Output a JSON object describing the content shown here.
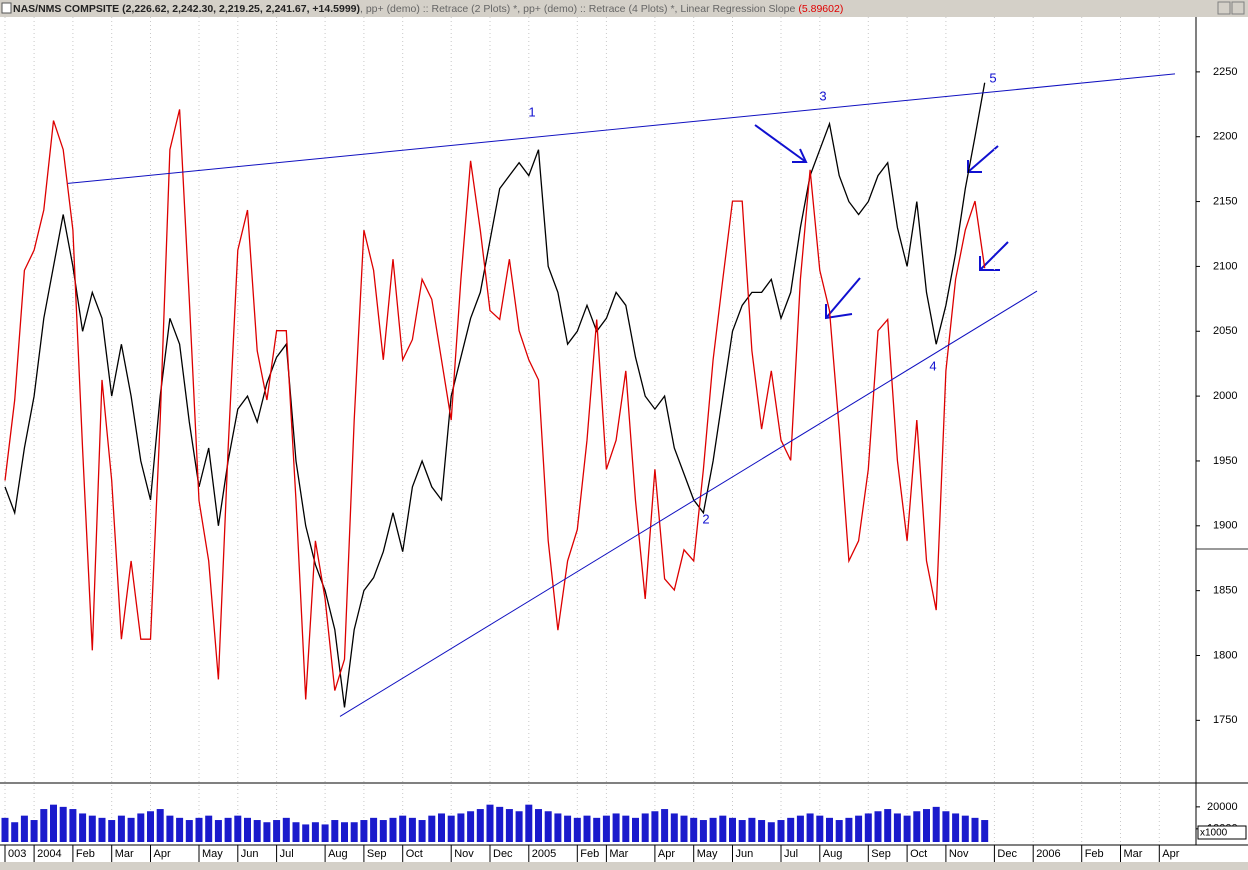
{
  "chart_data": [
    {
      "type": "line",
      "title": "NAS/NMS COMPSITE (2,226.62, 2,242.30, 2,219.25, 2,241.67, +14.5999)",
      "subtitle": ", pp+ (demo) :: Retrace (2 Plots) *, pp+ (demo) :: Retrace (4 Plots) *, Linear Regression Slope",
      "readout": "(5.89602)",
      "grid": true,
      "categories": [
        "003",
        null,
        null,
        "2004",
        null,
        null,
        null,
        "Feb",
        null,
        null,
        null,
        "Mar",
        null,
        null,
        null,
        "Apr",
        null,
        null,
        null,
        null,
        "May",
        null,
        null,
        null,
        "Jun",
        null,
        null,
        null,
        "Jul",
        null,
        null,
        null,
        null,
        "Aug",
        null,
        null,
        null,
        "Sep",
        null,
        null,
        null,
        "Oct",
        null,
        null,
        null,
        null,
        "Nov",
        null,
        null,
        null,
        "Dec",
        null,
        null,
        null,
        "2005",
        null,
        null,
        null,
        null,
        "Feb",
        null,
        null,
        "Mar",
        null,
        null,
        null,
        null,
        "Apr",
        null,
        null,
        null,
        "May",
        null,
        null,
        null,
        "Jun",
        null,
        null,
        null,
        null,
        "Jul",
        null,
        null,
        null,
        "Aug",
        null,
        null,
        null,
        null,
        "Sep",
        null,
        null,
        null,
        "Oct",
        null,
        null,
        null,
        "Nov",
        null,
        null,
        null,
        null,
        "Dec",
        null,
        null,
        null,
        "2006",
        null,
        null,
        null,
        null,
        "Feb",
        null,
        null,
        null,
        "Mar",
        null,
        null,
        null,
        "Apr",
        null,
        null,
        null
      ],
      "series": [
        {
          "color": "#000000",
          "values": [
            1930,
            1910,
            1960,
            2000,
            2060,
            2100,
            2140,
            2100,
            2050,
            2080,
            2060,
            2000,
            2040,
            2000,
            1950,
            1920,
            2000,
            2060,
            2040,
            1980,
            1930,
            1960,
            1900,
            1950,
            1990,
            2000,
            1980,
            2010,
            2030,
            2040,
            1950,
            1900,
            1870,
            1850,
            1820,
            1760,
            1820,
            1850,
            1860,
            1880,
            1910,
            1880,
            1930,
            1950,
            1930,
            1920,
            2000,
            2030,
            2060,
            2080,
            2120,
            2160,
            2170,
            2180,
            2170,
            2190,
            2100,
            2080,
            2040,
            2050,
            2070,
            2050,
            2060,
            2080,
            2070,
            2030,
            2000,
            1990,
            2000,
            1960,
            1940,
            1920,
            1910,
            1950,
            2000,
            2050,
            2070,
            2080,
            2080,
            2090,
            2060,
            2080,
            2130,
            2170,
            2190,
            2210,
            2170,
            2150,
            2140,
            2150,
            2170,
            2180,
            2130,
            2100,
            2150,
            2080,
            2040,
            2070,
            2110,
            2160,
            2200,
            2241.67,
            null,
            null,
            null,
            null,
            null,
            null,
            null,
            null,
            null,
            null,
            null,
            null,
            null,
            null,
            null,
            null,
            null,
            null,
            null,
            null,
            null
          ]
        },
        {
          "color": "#dd0000",
          "axis": "y2",
          "values": [
            -3.6,
            0,
            5.8,
            6.7,
            8.5,
            12.5,
            11.2,
            7.6,
            -2.2,
            -11.2,
            0.9,
            -3.6,
            -10.7,
            -7.2,
            -10.7,
            -10.7,
            -0.9,
            11.2,
            13.0,
            4.5,
            -4.5,
            -7.2,
            -12.5,
            -2.2,
            6.7,
            8.5,
            2.2,
            0,
            3.1,
            3.1,
            -4.5,
            -13.4,
            -6.3,
            -8.9,
            -13.0,
            -11.6,
            -0.9,
            7.6,
            5.8,
            1.8,
            6.3,
            1.8,
            2.7,
            5.4,
            4.5,
            1.8,
            -0.9,
            5.4,
            10.7,
            7.6,
            4.0,
            3.6,
            6.3,
            3.1,
            1.8,
            0.9,
            -6.3,
            -10.3,
            -7.2,
            -5.8,
            -1.8,
            3.6,
            -3.1,
            -1.8,
            1.3,
            -4.5,
            -8.9,
            -3.1,
            -8.0,
            -8.5,
            -6.7,
            -7.2,
            -3.1,
            1.8,
            5.4,
            8.9,
            8.9,
            2.2,
            -1.3,
            1.3,
            -1.8,
            -2.7,
            5.4,
            10.3,
            5.8,
            4.0,
            -1.3,
            -7.2,
            -6.3,
            -3.1,
            3.1,
            3.6,
            -2.7,
            -6.3,
            -0.9,
            -7.2,
            -9.4,
            1.3,
            5.4,
            7.6,
            8.9,
            5.89602,
            null,
            null,
            null,
            null,
            null,
            null,
            null,
            null,
            null,
            null,
            null,
            null,
            null,
            null,
            null,
            null,
            null,
            null,
            null,
            null,
            null
          ]
        }
      ],
      "ylim": [
        1704,
        2290
      ],
      "yticks": [
        1750,
        1800,
        1850,
        1900,
        1950,
        2000,
        2050,
        2100,
        2150,
        2200,
        2250
      ],
      "y2lim": [
        -17,
        17
      ],
      "trendlines": [
        {
          "color": "#1010c0",
          "values": [
            2164,
            2248.5
          ]
        },
        {
          "color": "#1010c0",
          "values": [
            1753,
            2081
          ]
        }
      ],
      "annotations": [
        "1",
        "2",
        "3",
        "4",
        "5"
      ]
    },
    {
      "type": "bar",
      "color": "#1a1acc",
      "values": [
        15000,
        13000,
        16000,
        14000,
        19000,
        21000,
        20000,
        19000,
        17000,
        16000,
        15000,
        14000,
        16000,
        15000,
        17000,
        18000,
        19000,
        16000,
        15000,
        14000,
        15000,
        16000,
        14000,
        15000,
        16000,
        15000,
        14000,
        13000,
        14000,
        15000,
        13000,
        12000,
        13000,
        12000,
        14000,
        13000,
        13000,
        14000,
        15000,
        14000,
        15000,
        16000,
        15000,
        14000,
        16000,
        17000,
        16000,
        17000,
        18000,
        19000,
        21000,
        20000,
        19000,
        18000,
        21000,
        19000,
        18000,
        17000,
        16000,
        15000,
        16000,
        15000,
        16000,
        17000,
        16000,
        15000,
        17000,
        18000,
        19000,
        17000,
        16000,
        15000,
        14000,
        15000,
        16000,
        15000,
        14000,
        15000,
        14000,
        13000,
        14000,
        15000,
        16000,
        17000,
        16000,
        15000,
        14000,
        15000,
        16000,
        17000,
        18000,
        19000,
        17000,
        16000,
        18000,
        19000,
        20000,
        18000,
        17000,
        16000,
        15000,
        14000
      ],
      "ylim": [
        4000,
        29500
      ],
      "yticks": [
        10000,
        20000
      ],
      "unit_label": "x1000"
    }
  ]
}
